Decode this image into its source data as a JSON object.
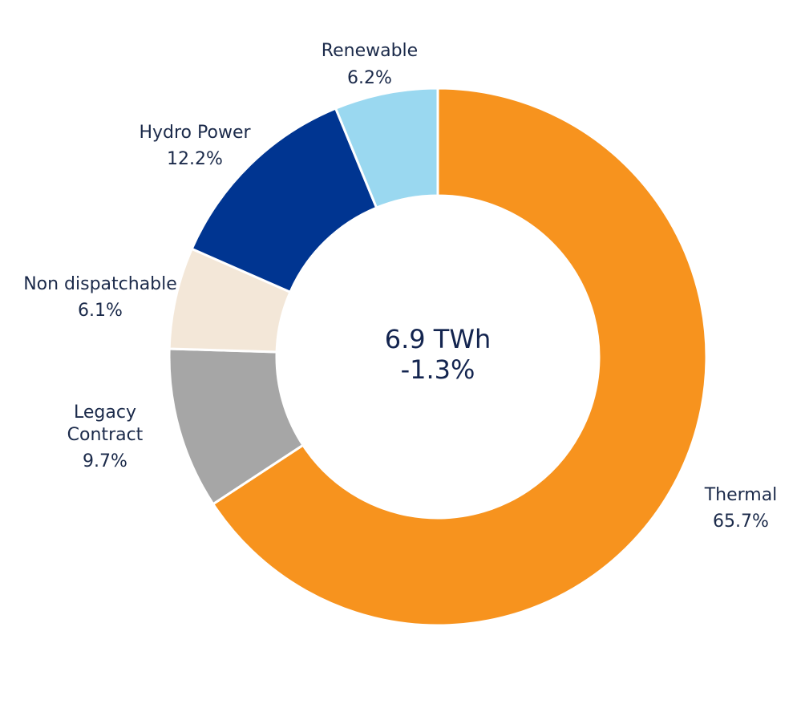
{
  "chart_data": {
    "type": "pie",
    "style": "donut",
    "center_text": [
      "6.9 TWh",
      "-1.3%"
    ],
    "unit": "%",
    "slices": [
      {
        "name": "Thermal",
        "value": 65.7,
        "label": "65.7%",
        "color": "#f7931e"
      },
      {
        "name": "Legacy Contract",
        "value": 9.7,
        "label": "9.7%",
        "color": "#a6a6a6"
      },
      {
        "name": "Non dispatchable",
        "value": 6.1,
        "label": "6.1%",
        "color": "#f3e7d8"
      },
      {
        "name": "Hydro Power",
        "value": 12.2,
        "label": "12.2%",
        "color": "#003591"
      },
      {
        "name": "Renewable",
        "value": 6.2,
        "label": "6.2%",
        "color": "#9ad8f0"
      }
    ]
  }
}
